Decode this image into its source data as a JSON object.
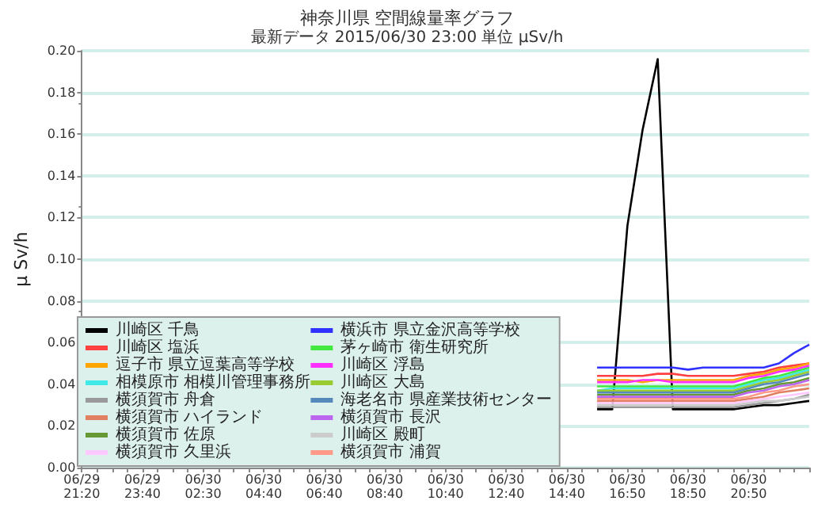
{
  "chart_data": {
    "type": "line",
    "title": "神奈川県 空間線量率グラフ",
    "subtitle": "最新データ 2015/06/30 23:00 単位 μSv/h",
    "ylabel": "μ Sv/h",
    "categories": [
      "06/29\n21:20",
      null,
      null,
      null,
      "06/29\n23:40",
      null,
      null,
      null,
      "06/30\n02:30",
      null,
      null,
      null,
      "06/30\n04:40",
      null,
      null,
      null,
      "06/30\n06:40",
      null,
      null,
      null,
      "06/30\n08:40",
      null,
      null,
      null,
      "06/30\n10:40",
      null,
      null,
      null,
      "06/30\n12:40",
      null,
      null,
      null,
      "06/30\n14:40",
      null,
      null,
      null,
      "06/30\n16:50",
      null,
      null,
      null,
      "06/30\n18:50",
      null,
      null,
      null,
      "06/30\n20:50",
      null,
      null,
      null,
      null
    ],
    "ylim": [
      0,
      0.2
    ],
    "yticks": [
      {
        "value": 0,
        "label": "0.00"
      },
      {
        "value": 0.02,
        "label": "0.02"
      },
      {
        "value": 0.04,
        "label": "0.04"
      },
      {
        "value": 0.06,
        "label": "0.06"
      },
      {
        "value": 0.08,
        "label": "0.08"
      },
      {
        "value": 0.1,
        "label": "0.10"
      },
      {
        "value": 0.12,
        "label": "0.12"
      },
      {
        "value": 0.14,
        "label": "0.14"
      },
      {
        "value": 0.16,
        "label": "0.16"
      },
      {
        "value": 0.18,
        "label": "0.18"
      },
      {
        "value": 0.2,
        "label": "0.20"
      }
    ],
    "grid": "y",
    "legend": "bottom left",
    "marker": "none",
    "line_style": "solid",
    "series": [
      {
        "name": "川崎区 千鳥",
        "color": "#000000",
        "values": [
          null,
          null,
          null,
          null,
          null,
          null,
          null,
          null,
          null,
          null,
          null,
          null,
          null,
          null,
          null,
          null,
          null,
          null,
          null,
          null,
          null,
          null,
          null,
          null,
          null,
          null,
          null,
          null,
          null,
          null,
          null,
          null,
          null,
          null,
          0.028,
          0.028,
          0.116,
          0.162,
          0.196,
          0.028,
          0.028,
          0.028,
          0.028,
          0.028,
          0.029,
          0.03,
          0.03,
          0.031,
          0.032
        ]
      },
      {
        "name": "川崎区 塩浜",
        "color": "#ff4040",
        "values": [
          null,
          null,
          null,
          null,
          null,
          null,
          null,
          null,
          null,
          null,
          null,
          null,
          null,
          null,
          null,
          null,
          null,
          null,
          null,
          null,
          null,
          null,
          null,
          null,
          null,
          null,
          null,
          null,
          null,
          null,
          null,
          null,
          null,
          null,
          0.044,
          0.044,
          0.044,
          0.044,
          0.045,
          0.045,
          0.044,
          0.044,
          0.044,
          0.044,
          0.045,
          0.046,
          0.048,
          0.049,
          0.05
        ]
      },
      {
        "name": "逗子市 県立逗葉高等学校",
        "color": "#ffa500",
        "values": [
          null,
          null,
          null,
          null,
          null,
          null,
          null,
          null,
          null,
          null,
          null,
          null,
          null,
          null,
          null,
          null,
          null,
          null,
          null,
          null,
          null,
          null,
          null,
          null,
          null,
          null,
          null,
          null,
          null,
          null,
          null,
          null,
          null,
          null,
          0.042,
          0.042,
          0.042,
          0.041,
          0.042,
          0.042,
          0.042,
          0.042,
          0.042,
          0.042,
          0.044,
          0.045,
          0.047,
          0.048,
          0.05
        ]
      },
      {
        "name": "相模原市 相模川管理事務所",
        "color": "#40e8e8",
        "values": [
          null,
          null,
          null,
          null,
          null,
          null,
          null,
          null,
          null,
          null,
          null,
          null,
          null,
          null,
          null,
          null,
          null,
          null,
          null,
          null,
          null,
          null,
          null,
          null,
          null,
          null,
          null,
          null,
          null,
          null,
          null,
          null,
          null,
          null,
          0.037,
          0.038,
          0.038,
          0.038,
          0.038,
          0.038,
          0.038,
          0.038,
          0.038,
          0.038,
          0.04,
          0.042,
          0.043,
          0.045,
          0.047
        ]
      },
      {
        "name": "横須賀市 舟倉",
        "color": "#999999",
        "values": [
          null,
          null,
          null,
          null,
          null,
          null,
          null,
          null,
          null,
          null,
          null,
          null,
          null,
          null,
          null,
          null,
          null,
          null,
          null,
          null,
          null,
          null,
          null,
          null,
          null,
          null,
          null,
          null,
          null,
          null,
          null,
          null,
          null,
          null,
          0.029,
          0.029,
          0.029,
          0.029,
          0.029,
          0.029,
          0.029,
          0.029,
          0.029,
          0.029,
          0.03,
          0.031,
          0.032,
          0.033,
          0.035
        ]
      },
      {
        "name": "横須賀市 ハイランド",
        "color": "#e08060",
        "values": [
          null,
          null,
          null,
          null,
          null,
          null,
          null,
          null,
          null,
          null,
          null,
          null,
          null,
          null,
          null,
          null,
          null,
          null,
          null,
          null,
          null,
          null,
          null,
          null,
          null,
          null,
          null,
          null,
          null,
          null,
          null,
          null,
          null,
          null,
          0.032,
          0.032,
          0.032,
          0.032,
          0.032,
          0.032,
          0.032,
          0.032,
          0.032,
          0.032,
          0.033,
          0.034,
          0.036,
          0.037,
          0.038
        ]
      },
      {
        "name": "横須賀市 佐原",
        "color": "#669933",
        "values": [
          null,
          null,
          null,
          null,
          null,
          null,
          null,
          null,
          null,
          null,
          null,
          null,
          null,
          null,
          null,
          null,
          null,
          null,
          null,
          null,
          null,
          null,
          null,
          null,
          null,
          null,
          null,
          null,
          null,
          null,
          null,
          null,
          null,
          null,
          0.035,
          0.035,
          0.035,
          0.035,
          0.035,
          0.035,
          0.035,
          0.035,
          0.035,
          0.035,
          0.037,
          0.038,
          0.04,
          0.041,
          0.043
        ]
      },
      {
        "name": "横須賀市 久里浜",
        "color": "#ffc8ff",
        "values": [
          null,
          null,
          null,
          null,
          null,
          null,
          null,
          null,
          null,
          null,
          null,
          null,
          null,
          null,
          null,
          null,
          null,
          null,
          null,
          null,
          null,
          null,
          null,
          null,
          null,
          null,
          null,
          null,
          null,
          null,
          null,
          null,
          null,
          null,
          0.031,
          0.031,
          0.031,
          0.031,
          0.031,
          0.031,
          0.031,
          0.031,
          0.031,
          0.031,
          0.032,
          0.033,
          0.034,
          0.035,
          0.036
        ]
      },
      {
        "name": "横浜市 県立金沢高等学校",
        "color": "#3030ff",
        "values": [
          null,
          null,
          null,
          null,
          null,
          null,
          null,
          null,
          null,
          null,
          null,
          null,
          null,
          null,
          null,
          null,
          null,
          null,
          null,
          null,
          null,
          null,
          null,
          null,
          null,
          null,
          null,
          null,
          null,
          null,
          null,
          null,
          null,
          null,
          0.048,
          0.048,
          0.048,
          0.048,
          0.048,
          0.048,
          0.047,
          0.048,
          0.048,
          0.048,
          0.048,
          0.048,
          0.05,
          0.055,
          0.059
        ]
      },
      {
        "name": "茅ヶ崎市 衛生研究所",
        "color": "#40e840",
        "values": [
          null,
          null,
          null,
          null,
          null,
          null,
          null,
          null,
          null,
          null,
          null,
          null,
          null,
          null,
          null,
          null,
          null,
          null,
          null,
          null,
          null,
          null,
          null,
          null,
          null,
          null,
          null,
          null,
          null,
          null,
          null,
          null,
          null,
          null,
          0.039,
          0.039,
          0.039,
          0.039,
          0.039,
          0.039,
          0.039,
          0.039,
          0.039,
          0.039,
          0.041,
          0.043,
          0.044,
          0.046,
          0.048
        ]
      },
      {
        "name": "川崎区 浮島",
        "color": "#ff30ff",
        "values": [
          null,
          null,
          null,
          null,
          null,
          null,
          null,
          null,
          null,
          null,
          null,
          null,
          null,
          null,
          null,
          null,
          null,
          null,
          null,
          null,
          null,
          null,
          null,
          null,
          null,
          null,
          null,
          null,
          null,
          null,
          null,
          null,
          null,
          null,
          0.041,
          0.041,
          0.041,
          0.042,
          0.042,
          0.041,
          0.041,
          0.041,
          0.041,
          0.041,
          0.043,
          0.044,
          0.046,
          0.047,
          0.049
        ]
      },
      {
        "name": "川崎区 大島",
        "color": "#99cc33",
        "values": [
          null,
          null,
          null,
          null,
          null,
          null,
          null,
          null,
          null,
          null,
          null,
          null,
          null,
          null,
          null,
          null,
          null,
          null,
          null,
          null,
          null,
          null,
          null,
          null,
          null,
          null,
          null,
          null,
          null,
          null,
          null,
          null,
          null,
          null,
          0.037,
          0.037,
          0.037,
          0.037,
          0.037,
          0.037,
          0.037,
          0.037,
          0.037,
          0.037,
          0.039,
          0.041,
          0.042,
          0.044,
          0.046
        ]
      },
      {
        "name": "海老名市 県産業技術センター",
        "color": "#5588bb",
        "values": [
          null,
          null,
          null,
          null,
          null,
          null,
          null,
          null,
          null,
          null,
          null,
          null,
          null,
          null,
          null,
          null,
          null,
          null,
          null,
          null,
          null,
          null,
          null,
          null,
          null,
          null,
          null,
          null,
          null,
          null,
          null,
          null,
          null,
          null,
          0.036,
          0.036,
          0.036,
          0.036,
          0.036,
          0.036,
          0.036,
          0.036,
          0.036,
          0.036,
          0.038,
          0.04,
          0.041,
          0.043,
          0.045
        ]
      },
      {
        "name": "横須賀市 長沢",
        "color": "#bb66ee",
        "values": [
          null,
          null,
          null,
          null,
          null,
          null,
          null,
          null,
          null,
          null,
          null,
          null,
          null,
          null,
          null,
          null,
          null,
          null,
          null,
          null,
          null,
          null,
          null,
          null,
          null,
          null,
          null,
          null,
          null,
          null,
          null,
          null,
          null,
          null,
          0.034,
          0.034,
          0.034,
          0.034,
          0.034,
          0.034,
          0.034,
          0.034,
          0.034,
          0.034,
          0.036,
          0.037,
          0.039,
          0.04,
          0.042
        ]
      },
      {
        "name": "川崎区 殿町",
        "color": "#cccccc",
        "values": [
          null,
          null,
          null,
          null,
          null,
          null,
          null,
          null,
          null,
          null,
          null,
          null,
          null,
          null,
          null,
          null,
          null,
          null,
          null,
          null,
          null,
          null,
          null,
          null,
          null,
          null,
          null,
          null,
          null,
          null,
          null,
          null,
          null,
          null,
          0.03,
          0.03,
          0.03,
          0.03,
          0.03,
          0.03,
          0.03,
          0.03,
          0.03,
          0.03,
          0.031,
          0.032,
          0.032,
          0.033,
          0.034
        ]
      },
      {
        "name": "横須賀市 浦賀",
        "color": "#ff9988",
        "values": [
          null,
          null,
          null,
          null,
          null,
          null,
          null,
          null,
          null,
          null,
          null,
          null,
          null,
          null,
          null,
          null,
          null,
          null,
          null,
          null,
          null,
          null,
          null,
          null,
          null,
          null,
          null,
          null,
          null,
          null,
          null,
          null,
          null,
          null,
          0.033,
          0.033,
          0.033,
          0.033,
          0.033,
          0.033,
          0.033,
          0.033,
          0.033,
          0.033,
          0.034,
          0.036,
          0.037,
          0.039,
          0.04
        ]
      }
    ]
  }
}
